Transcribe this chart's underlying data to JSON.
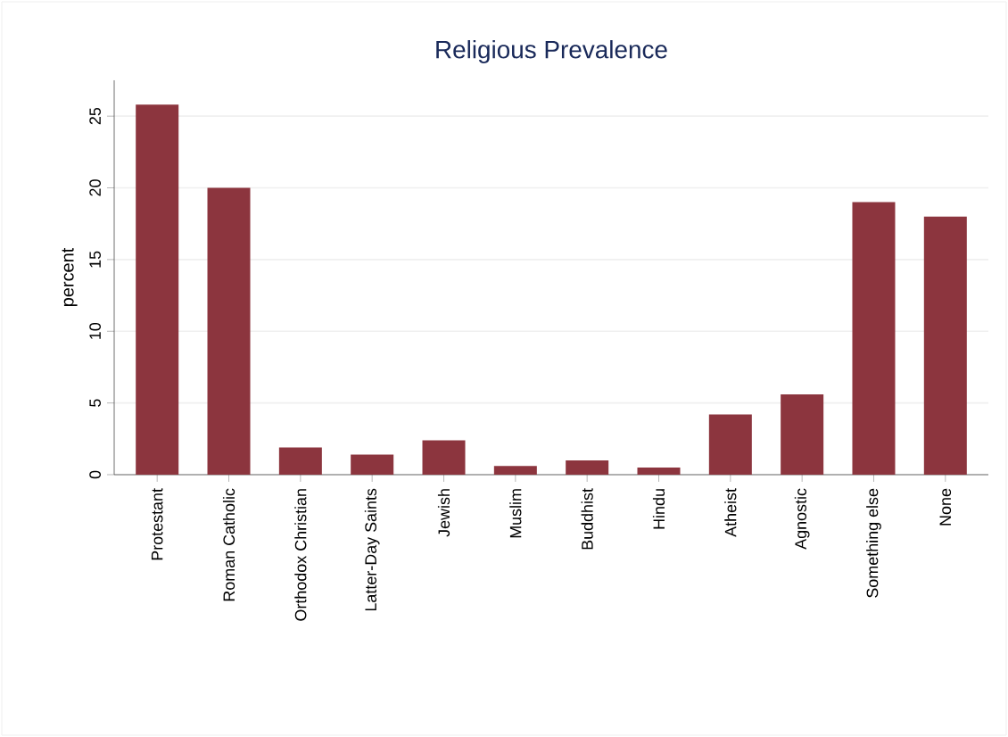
{
  "chart_data": {
    "type": "bar",
    "title": "Religious Prevalence",
    "ylabel": "percent",
    "categories": [
      "Protestant",
      "Roman Catholic",
      "Orthodox Christian",
      "Latter-Day Saints",
      "Jewish",
      "Muslim",
      "Buddhist",
      "Hindu",
      "Atheist",
      "Agnostic",
      "Something else",
      "None"
    ],
    "values": [
      25.8,
      20.0,
      1.9,
      1.4,
      2.4,
      0.6,
      1.0,
      0.5,
      4.2,
      5.6,
      19.0,
      18.0
    ],
    "color": "#8c353e",
    "ylim": [
      0,
      27.5
    ],
    "yticks": [
      0,
      5,
      10,
      15,
      20,
      25
    ],
    "grid": "y"
  }
}
